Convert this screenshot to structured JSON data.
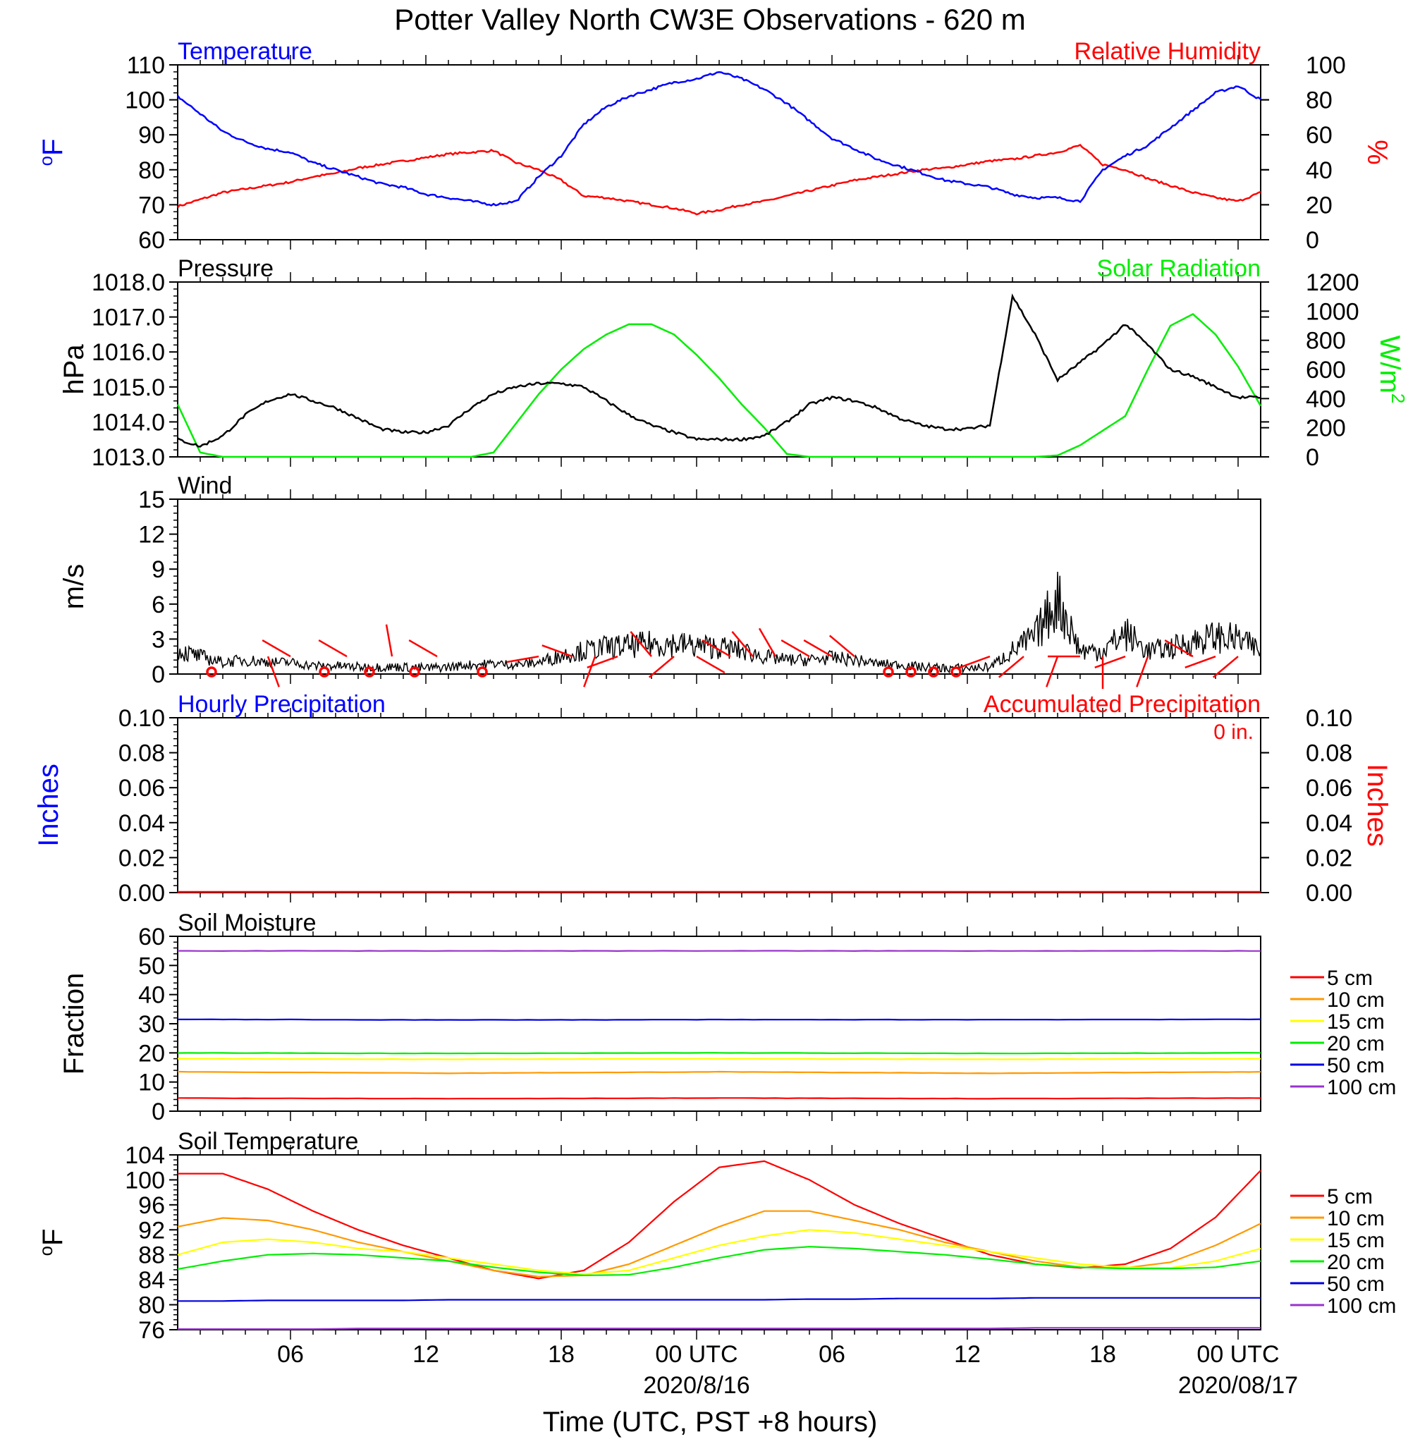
{
  "page": {
    "title": "Potter Valley North CW3E Observations - 620 m"
  },
  "time_axis": {
    "xlabel": "Time (UTC, PST +8 hours)",
    "ticks": [
      {
        "h": 6,
        "label": "06"
      },
      {
        "h": 12,
        "label": "12"
      },
      {
        "h": 18,
        "label": "18"
      },
      {
        "h": 24,
        "label": "00 UTC"
      },
      {
        "h": 30,
        "label": "06"
      },
      {
        "h": 36,
        "label": "12"
      },
      {
        "h": 42,
        "label": "18"
      },
      {
        "h": 48,
        "label": "00 UTC"
      }
    ],
    "date_labels": [
      {
        "h": 24,
        "label": "2020/8/16"
      },
      {
        "h": 48,
        "label": "2020/08/17"
      }
    ],
    "xlim": [
      1,
      49
    ]
  },
  "colors": {
    "temperature": "#0000ff",
    "humidity": "#ff0000",
    "pressure": "#000000",
    "solar": "#00ee00",
    "wind": "#000000",
    "barb": "#ff0000",
    "soil_5": "#ff0000",
    "soil_10": "#ff9900",
    "soil_15": "#ffff00",
    "soil_20": "#00ee00",
    "soil_50": "#0000dd",
    "soil_100": "#9933cc"
  },
  "chart_data": [
    {
      "type": "line",
      "title_left": "Temperature",
      "title_right": "Relative Humidity",
      "ylabel_left": "oF",
      "ylabel_right": "%",
      "ylim_left": [
        60,
        110
      ],
      "yticks_left": [
        "60",
        "70",
        "80",
        "90",
        "100",
        "110"
      ],
      "ylim_right": [
        0,
        100
      ],
      "yticks_right": [
        "0",
        "20",
        "40",
        "60",
        "80",
        "100"
      ],
      "x_hours": [
        1,
        2,
        3,
        4,
        5,
        6,
        7,
        8,
        9,
        10,
        11,
        12,
        13,
        14,
        15,
        16,
        17,
        18,
        19,
        20,
        21,
        22,
        23,
        24,
        25,
        26,
        27,
        28,
        29,
        30,
        31,
        32,
        33,
        34,
        35,
        36,
        37,
        38,
        39,
        40,
        41,
        42,
        43,
        44,
        45,
        46,
        47,
        48,
        49
      ],
      "series": [
        {
          "name": "Temperature",
          "axis": "left",
          "values": [
            101,
            96,
            91,
            88,
            86,
            85,
            82,
            80,
            78,
            76,
            75,
            73,
            72,
            71,
            70,
            71,
            78,
            84,
            93,
            98,
            101,
            103,
            105,
            106,
            108,
            106,
            103,
            99,
            94,
            89,
            86,
            83,
            81,
            79,
            77,
            76,
            75,
            73,
            72,
            72,
            71,
            80,
            84,
            87,
            92,
            97,
            102,
            104,
            100
          ]
        },
        {
          "name": "Relative Humidity",
          "axis": "right",
          "values": [
            19,
            23,
            27,
            29,
            31,
            33,
            36,
            38,
            41,
            43,
            45,
            47,
            49,
            50,
            51,
            44,
            40,
            34,
            25,
            24,
            22,
            20,
            18,
            15,
            17,
            20,
            22,
            25,
            28,
            31,
            34,
            36,
            38,
            40,
            41,
            43,
            45,
            46,
            48,
            50,
            54,
            43,
            40,
            35,
            31,
            27,
            24,
            22,
            27
          ]
        }
      ]
    },
    {
      "type": "line",
      "title_left": "Pressure",
      "title_right": "Solar Radiation",
      "ylabel_left": "hPa",
      "ylabel_right": "W/m2",
      "ylim_left": [
        1013,
        1018
      ],
      "yticks_left": [
        "1013.0",
        "1014.0",
        "1015.0",
        "1016.0",
        "1017.0",
        "1018.0"
      ],
      "ylim_right": [
        0,
        1200
      ],
      "yticks_right": [
        "0",
        "200",
        "400",
        "600",
        "800",
        "1000",
        "1200"
      ],
      "x_hours": [
        1,
        2,
        3,
        4,
        5,
        6,
        7,
        8,
        9,
        10,
        11,
        12,
        13,
        14,
        15,
        16,
        17,
        18,
        19,
        20,
        21,
        22,
        23,
        24,
        25,
        26,
        27,
        28,
        29,
        30,
        31,
        32,
        33,
        34,
        35,
        36,
        37,
        38,
        39,
        40,
        41,
        42,
        43,
        44,
        45,
        46,
        47,
        48,
        49
      ],
      "series": [
        {
          "name": "Pressure",
          "axis": "left",
          "values": [
            1013.5,
            1013.3,
            1013.6,
            1014.2,
            1014.6,
            1014.8,
            1014.6,
            1014.4,
            1014.1,
            1013.8,
            1013.7,
            1013.7,
            1013.9,
            1014.4,
            1014.8,
            1015.0,
            1015.1,
            1015.1,
            1015.0,
            1014.6,
            1014.2,
            1013.9,
            1013.7,
            1013.5,
            1013.5,
            1013.5,
            1013.6,
            1014.0,
            1014.5,
            1014.7,
            1014.6,
            1014.4,
            1014.1,
            1013.9,
            1013.8,
            1013.8,
            1013.9,
            1017.6,
            1016.5,
            1015.2,
            1015.7,
            1016.2,
            1016.8,
            1016.2,
            1015.5,
            1015.3,
            1015.0,
            1014.7,
            1014.7
          ]
        },
        {
          "name": "Solar Radiation",
          "axis": "right",
          "values": [
            360,
            30,
            0,
            0,
            0,
            0,
            0,
            0,
            0,
            0,
            0,
            0,
            0,
            0,
            30,
            230,
            430,
            600,
            740,
            840,
            910,
            910,
            840,
            700,
            540,
            360,
            200,
            20,
            0,
            0,
            0,
            0,
            0,
            0,
            0,
            0,
            0,
            0,
            0,
            10,
            80,
            180,
            280,
            600,
            900,
            980,
            840,
            620,
            350
          ]
        }
      ]
    },
    {
      "type": "line",
      "title_left": "Wind",
      "ylabel_left": "m/s",
      "ylim_left": [
        0,
        15
      ],
      "yticks_left": [
        "0",
        "3",
        "6",
        "9",
        "12",
        "15"
      ],
      "x_hours": [
        1,
        2,
        3,
        4,
        5,
        6,
        7,
        8,
        9,
        10,
        11,
        12,
        13,
        14,
        15,
        16,
        17,
        18,
        19,
        20,
        21,
        22,
        23,
        24,
        25,
        26,
        27,
        28,
        29,
        30,
        31,
        32,
        33,
        34,
        35,
        36,
        37,
        38,
        39,
        40,
        41,
        42,
        43,
        44,
        45,
        46,
        47,
        48,
        49
      ],
      "series": [
        {
          "name": "Wind",
          "axis": "left",
          "values": [
            2.0,
            1.5,
            1.0,
            1.2,
            1.0,
            1.0,
            0.7,
            0.7,
            0.6,
            0.6,
            0.6,
            0.5,
            0.6,
            0.8,
            0.9,
            0.8,
            1.0,
            1.6,
            2.0,
            2.3,
            2.4,
            2.6,
            2.6,
            2.4,
            2.3,
            2.0,
            1.5,
            1.2,
            1.2,
            1.4,
            1.2,
            0.9,
            0.8,
            0.6,
            0.5,
            0.5,
            0.6,
            2.0,
            3.2,
            6.5,
            2.0,
            2.0,
            3.5,
            2.0,
            2.2,
            2.8,
            3.2,
            3.0,
            2.0
          ]
        }
      ],
      "barbs": [
        {
          "h": 2.5,
          "calm": true
        },
        {
          "h": 5,
          "dir": 160
        },
        {
          "h": 6,
          "dir": 300
        },
        {
          "h": 7.5,
          "calm": true
        },
        {
          "h": 8.5,
          "dir": 300
        },
        {
          "h": 9.5,
          "calm": true
        },
        {
          "h": 10.5,
          "dir": 350
        },
        {
          "h": 11.5,
          "calm": true
        },
        {
          "h": 12.5,
          "dir": 300
        },
        {
          "h": 14.5,
          "calm": true
        },
        {
          "h": 17,
          "dir": 260
        },
        {
          "h": 18.5,
          "dir": 290
        },
        {
          "h": 19.5,
          "dir": 200
        },
        {
          "h": 20.5,
          "dir": 250
        },
        {
          "h": 22,
          "dir": 320
        },
        {
          "h": 23,
          "dir": 230
        },
        {
          "h": 24,
          "dir": 120
        },
        {
          "h": 25.5,
          "dir": 300
        },
        {
          "h": 26.5,
          "dir": 320
        },
        {
          "h": 27.5,
          "dir": 330
        },
        {
          "h": 29,
          "dir": 300
        },
        {
          "h": 30,
          "dir": 300
        },
        {
          "h": 31,
          "dir": 310
        },
        {
          "h": 32.5,
          "calm": true
        },
        {
          "h": 33.5,
          "calm": true
        },
        {
          "h": 34.5,
          "calm": true
        },
        {
          "h": 35.5,
          "calm": true
        },
        {
          "h": 37,
          "dir": 250
        },
        {
          "h": 38.5,
          "dir": 230
        },
        {
          "h": 40,
          "dir": 200
        },
        {
          "h": 41,
          "dir": 270
        },
        {
          "h": 42,
          "dir": 180
        },
        {
          "h": 43,
          "dir": 250
        },
        {
          "h": 44,
          "dir": 200
        },
        {
          "h": 46,
          "dir": 300
        },
        {
          "h": 47,
          "dir": 250
        },
        {
          "h": 48,
          "dir": 230
        }
      ]
    },
    {
      "type": "bar",
      "title_left": "Hourly Precipitation",
      "title_right": "Accumulated Precipitation",
      "annotation": "0 in.",
      "ylabel_left": "Inches",
      "ylabel_right": "Inches",
      "ylim_left": [
        0,
        0.1
      ],
      "yticks_left": [
        "0.00",
        "0.02",
        "0.04",
        "0.06",
        "0.08",
        "0.10"
      ],
      "ylim_right": [
        0,
        0.1
      ],
      "yticks_right": [
        "0.00",
        "0.02",
        "0.04",
        "0.06",
        "0.08",
        "0.10"
      ],
      "hourly_values": [],
      "accumulated_values": [
        0,
        0
      ]
    },
    {
      "type": "line",
      "title_left": "Soil Moisture",
      "ylabel_left": "Fraction",
      "ylim_left": [
        0,
        60
      ],
      "yticks_left": [
        "0",
        "10",
        "20",
        "30",
        "40",
        "50",
        "60"
      ],
      "x_hours": [
        1,
        13,
        25,
        37,
        49
      ],
      "series": [
        {
          "name": "5 cm",
          "values": [
            4.5,
            4.3,
            4.5,
            4.3,
            4.5
          ]
        },
        {
          "name": "10 cm",
          "values": [
            13.5,
            13.0,
            13.5,
            13.0,
            13.5
          ]
        },
        {
          "name": "15 cm",
          "values": [
            18.0,
            17.8,
            18.0,
            17.8,
            18.0
          ]
        },
        {
          "name": "20 cm",
          "values": [
            20.0,
            19.8,
            20.0,
            19.8,
            20.0
          ]
        },
        {
          "name": "50 cm",
          "values": [
            31.5,
            31.3,
            31.4,
            31.4,
            31.5
          ]
        },
        {
          "name": "100 cm",
          "values": [
            55.0,
            55.0,
            55.0,
            55.0,
            55.0
          ]
        }
      ]
    },
    {
      "type": "line",
      "title_left": "Soil Temperature",
      "ylabel_left": "oF",
      "ylim_left": [
        76,
        104
      ],
      "yticks_left": [
        "76",
        "80",
        "84",
        "88",
        "92",
        "96",
        "100",
        "104"
      ],
      "x_hours": [
        1,
        3,
        5,
        7,
        9,
        11,
        13,
        15,
        17,
        19,
        21,
        23,
        25,
        27,
        29,
        31,
        33,
        35,
        37,
        39,
        41,
        43,
        45,
        47,
        49
      ],
      "series": [
        {
          "name": "5 cm",
          "values": [
            101,
            101,
            98.5,
            95,
            92,
            89.5,
            87.5,
            85.5,
            84.2,
            85.5,
            90,
            96.5,
            102,
            103,
            100,
            96,
            93,
            90.5,
            88,
            86.5,
            85.9,
            86.5,
            89,
            94,
            101.5
          ]
        },
        {
          "name": "10 cm",
          "values": [
            92.5,
            93.9,
            93.5,
            92,
            90,
            88.5,
            87,
            85.5,
            84.5,
            84.7,
            86.5,
            89.5,
            92.5,
            95,
            95,
            93.5,
            92,
            90,
            88.5,
            87,
            86,
            85.9,
            86.8,
            89.5,
            93
          ]
        },
        {
          "name": "15 cm",
          "values": [
            88,
            90,
            90.5,
            90,
            89,
            88.5,
            87.5,
            86.5,
            85.5,
            84.9,
            85.5,
            87.5,
            89.5,
            91,
            92,
            91.5,
            90.5,
            89.5,
            88.5,
            87.5,
            86.5,
            86,
            85.9,
            87,
            89
          ]
        },
        {
          "name": "20 cm",
          "values": [
            85.7,
            87,
            88,
            88.2,
            88,
            87.5,
            87,
            86,
            85.2,
            84.7,
            84.8,
            86,
            87.5,
            88.8,
            89.3,
            89,
            88.5,
            88,
            87.3,
            86.5,
            86,
            85.8,
            85.8,
            86,
            87
          ]
        },
        {
          "name": "50 cm",
          "values": [
            80.6,
            80.6,
            80.7,
            80.7,
            80.7,
            80.7,
            80.8,
            80.8,
            80.8,
            80.8,
            80.8,
            80.8,
            80.8,
            80.8,
            80.9,
            80.9,
            81,
            81,
            81,
            81.1,
            81.1,
            81.1,
            81.1,
            81.1,
            81.1
          ]
        },
        {
          "name": "100 cm",
          "values": [
            76.1,
            76.1,
            76.1,
            76.1,
            76.2,
            76.2,
            76.2,
            76.2,
            76.2,
            76.2,
            76.2,
            76.2,
            76.2,
            76.2,
            76.2,
            76.2,
            76.2,
            76.2,
            76.2,
            76.3,
            76.3,
            76.3,
            76.3,
            76.3,
            76.3
          ]
        }
      ]
    }
  ]
}
